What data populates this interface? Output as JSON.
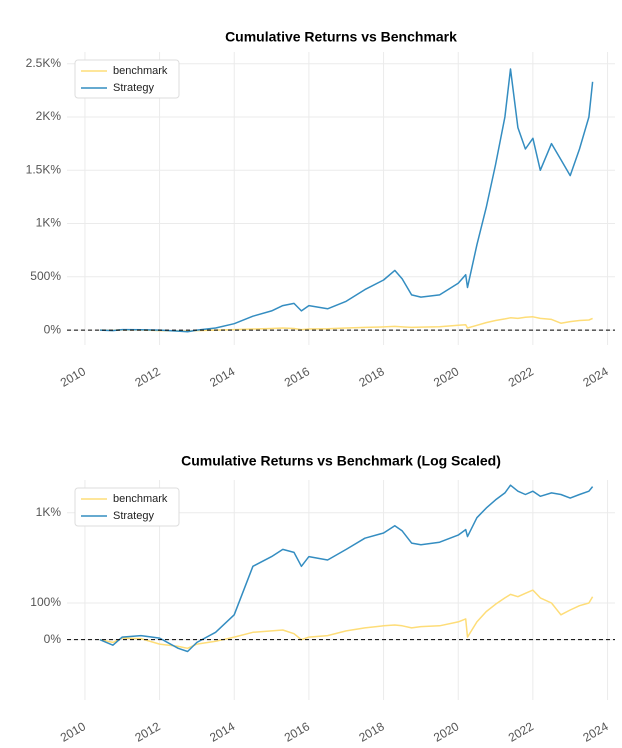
{
  "chart_data": [
    {
      "type": "line",
      "title": "Cumulative Returns vs Benchmark",
      "yscale": "linear",
      "grid": true,
      "legend": "upper-left",
      "baseline": 0,
      "x": [
        2010.4,
        2010.75,
        2011,
        2011.5,
        2012,
        2012.5,
        2012.75,
        2013,
        2013.5,
        2014,
        2014.5,
        2015,
        2015.3,
        2015.6,
        2015.8,
        2016,
        2016.5,
        2017,
        2017.5,
        2018,
        2018.3,
        2018.5,
        2018.75,
        2019,
        2019.5,
        2020,
        2020.2,
        2020.25,
        2020.5,
        2020.75,
        2021,
        2021.25,
        2021.4,
        2021.6,
        2021.8,
        2022,
        2022.2,
        2022.5,
        2022.75,
        2023,
        2023.25,
        2023.5,
        2023.6
      ],
      "series": [
        {
          "name": "benchmark",
          "color": "#fedd78",
          "values": [
            0,
            -3,
            3,
            2,
            -5,
            -8,
            -10,
            -5,
            0,
            5,
            10,
            15,
            20,
            15,
            5,
            10,
            12,
            20,
            25,
            30,
            35,
            30,
            25,
            28,
            32,
            45,
            50,
            20,
            45,
            70,
            90,
            105,
            115,
            110,
            120,
            125,
            110,
            100,
            65,
            80,
            90,
            95,
            110
          ]
        },
        {
          "name": "Strategy",
          "color": "#348dc1",
          "values": [
            0,
            -5,
            5,
            3,
            0,
            -10,
            -15,
            0,
            20,
            60,
            130,
            180,
            230,
            250,
            180,
            230,
            200,
            270,
            380,
            470,
            560,
            480,
            330,
            310,
            330,
            440,
            520,
            400,
            800,
            1150,
            1550,
            2000,
            2450,
            1900,
            1700,
            1800,
            1500,
            1750,
            1600,
            1450,
            1700,
            2000,
            2330
          ]
        }
      ],
      "xlim": [
        2009.52,
        2024.2
      ],
      "xticks": [
        2010,
        2012,
        2014,
        2016,
        2018,
        2020,
        2022,
        2024
      ],
      "ylim": [
        -140,
        2610
      ],
      "yticks": [
        {
          "value": 0,
          "label": "0%"
        },
        {
          "value": 500,
          "label": "500%"
        },
        {
          "value": 1000,
          "label": "1K%"
        },
        {
          "value": 1500,
          "label": "1.5K%"
        },
        {
          "value": 2000,
          "label": "2K%"
        },
        {
          "value": 2500,
          "label": "2.5K%"
        }
      ]
    },
    {
      "type": "line",
      "title": "Cumulative Returns vs Benchmark (Log Scaled)",
      "yscale": "log",
      "grid": true,
      "legend": "upper-left",
      "baseline": 0,
      "x": [
        2010.4,
        2010.75,
        2011,
        2011.5,
        2012,
        2012.5,
        2012.75,
        2013,
        2013.5,
        2014,
        2014.5,
        2015,
        2015.3,
        2015.6,
        2015.8,
        2016,
        2016.5,
        2017,
        2017.5,
        2018,
        2018.3,
        2018.5,
        2018.75,
        2019,
        2019.5,
        2020,
        2020.2,
        2020.25,
        2020.5,
        2020.75,
        2021,
        2021.25,
        2021.4,
        2021.6,
        2021.8,
        2022,
        2022.2,
        2022.5,
        2022.75,
        2023,
        2023.25,
        2023.5,
        2023.6
      ],
      "series": [
        {
          "name": "benchmark",
          "color": "#fedd78",
          "values": [
            0,
            -5,
            3,
            2,
            -8,
            -12,
            -15,
            -8,
            -3,
            5,
            15,
            18,
            20,
            12,
            0,
            5,
            8,
            18,
            25,
            30,
            32,
            30,
            25,
            28,
            30,
            40,
            48,
            5,
            40,
            70,
            95,
            120,
            135,
            125,
            140,
            155,
            120,
            100,
            60,
            75,
            90,
            100,
            125
          ]
        },
        {
          "name": "Strategy",
          "color": "#348dc1",
          "values": [
            0,
            -10,
            5,
            8,
            3,
            -15,
            -20,
            -5,
            15,
            60,
            300,
            380,
            450,
            420,
            300,
            380,
            350,
            450,
            580,
            650,
            760,
            680,
            520,
            500,
            530,
            620,
            700,
            600,
            900,
            1100,
            1300,
            1500,
            1750,
            1550,
            1450,
            1550,
            1400,
            1500,
            1450,
            1350,
            1450,
            1550,
            1700
          ]
        }
      ],
      "xlim": [
        2009.52,
        2024.2
      ],
      "xticks": [
        2010,
        2012,
        2014,
        2016,
        2018,
        2020,
        2022,
        2024
      ],
      "ylim": [
        -68,
        1940
      ],
      "yticks": [
        {
          "value": 0,
          "label": "0%"
        },
        {
          "value": 100,
          "label": "100%"
        },
        {
          "value": 1000,
          "label": "1K%"
        }
      ]
    }
  ]
}
